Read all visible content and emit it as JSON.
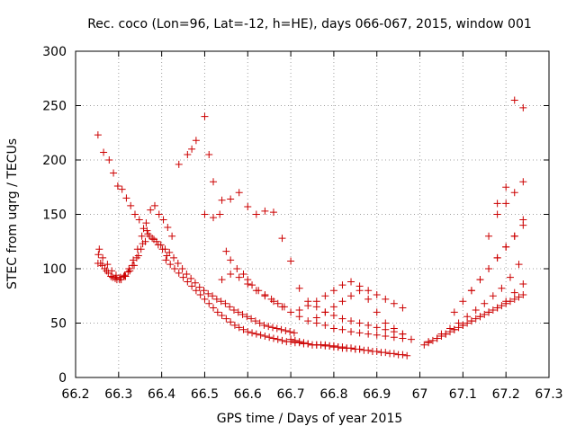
{
  "chart_data": {
    "type": "scatter",
    "title": "Rec. coco (Lon=96, Lat=-12, h=HE), days 066-067, 2015, window 001",
    "xlabel": "GPS time / Days of year 2015",
    "ylabel": "STEC from uqrg / TECUs",
    "xlim": [
      66.2,
      67.3
    ],
    "ylim": [
      0,
      300
    ],
    "xticks": [
      "66.2",
      "66.3",
      "66.4",
      "66.5",
      "66.6",
      "66.7",
      "66.8",
      "66.9",
      "67",
      "67.1",
      "67.2",
      "67.3"
    ],
    "yticks": [
      "0",
      "50",
      "100",
      "150",
      "200",
      "250",
      "300"
    ],
    "grid": true,
    "legend": "none",
    "marker": "+",
    "color": "#cc0000",
    "x": [
      66.252,
      66.262,
      66.272,
      66.282,
      66.292,
      66.302,
      66.312,
      66.322,
      66.332,
      66.342,
      66.352,
      66.362,
      66.372,
      66.382,
      66.392,
      66.402,
      66.412,
      66.253,
      66.258,
      66.268,
      66.276,
      66.286,
      66.296,
      66.306,
      66.316,
      66.326,
      66.336,
      66.346,
      66.356,
      66.366,
      66.255,
      66.263,
      66.274,
      66.284,
      66.294,
      66.304,
      66.314,
      66.324,
      66.334,
      66.344,
      66.354,
      66.364,
      66.374,
      66.384,
      66.394,
      66.404,
      66.414,
      66.424,
      66.252,
      66.265,
      66.278,
      66.288,
      66.298,
      66.308,
      66.318,
      66.328,
      66.338,
      66.348,
      66.358,
      66.368,
      66.378,
      66.388,
      66.398,
      66.408,
      66.418,
      66.428,
      66.438,
      66.448,
      66.458,
      66.468,
      66.478,
      66.488,
      66.498,
      66.508,
      66.518,
      66.528,
      66.538,
      66.548,
      66.558,
      66.568,
      66.578,
      66.588,
      66.598,
      66.608,
      66.618,
      66.628,
      66.638,
      66.648,
      66.658,
      66.668,
      66.678,
      66.688,
      66.698,
      66.708,
      66.41,
      66.42,
      66.43,
      66.44,
      66.45,
      66.46,
      66.47,
      66.48,
      66.49,
      66.5,
      66.51,
      66.52,
      66.53,
      66.54,
      66.55,
      66.56,
      66.57,
      66.58,
      66.59,
      66.6,
      66.61,
      66.62,
      66.63,
      66.64,
      66.65,
      66.66,
      66.67,
      66.68,
      66.69,
      66.7,
      66.71,
      66.72,
      66.73,
      66.74,
      66.75,
      66.76,
      66.77,
      66.78,
      66.79,
      66.8,
      66.81,
      66.82,
      66.83,
      66.84,
      66.85,
      66.86,
      66.87,
      66.88,
      66.89,
      66.9,
      66.91,
      66.92,
      66.93,
      66.94,
      66.95,
      66.96,
      66.97,
      66.44,
      66.46,
      66.47,
      66.48,
      66.5,
      66.51,
      66.52,
      66.535,
      66.55,
      66.56,
      66.575,
      66.59,
      66.6,
      66.61,
      66.625,
      66.64,
      66.655,
      66.67,
      66.685,
      66.5,
      66.52,
      66.54,
      66.56,
      66.58,
      66.6,
      66.62,
      66.64,
      66.66,
      66.68,
      66.7,
      66.72,
      66.74,
      66.76,
      66.78,
      66.8,
      66.82,
      66.84,
      66.86,
      66.88,
      66.9,
      66.92,
      66.94,
      66.96,
      66.54,
      66.56,
      66.58,
      66.6,
      66.62,
      66.64,
      66.66,
      66.68,
      66.7,
      66.72,
      66.74,
      66.76,
      66.78,
      66.8,
      66.82,
      66.84,
      66.86,
      66.88,
      66.9,
      66.92,
      66.94,
      66.96,
      66.98,
      66.72,
      66.74,
      66.76,
      66.78,
      66.8,
      66.82,
      66.84,
      66.86,
      66.88,
      66.9,
      66.92,
      66.94,
      66.96,
      66.76,
      66.78,
      66.8,
      66.82,
      66.84,
      66.86,
      66.88,
      66.9,
      66.92,
      66.94,
      66.96,
      66.7,
      66.71,
      66.72,
      66.73,
      66.74,
      66.75,
      66.76,
      66.77,
      66.78,
      66.79,
      66.8,
      66.81,
      66.82,
      66.83,
      66.84,
      66.85,
      66.86,
      67.01,
      67.02,
      67.03,
      67.04,
      67.05,
      67.06,
      67.07,
      67.08,
      67.09,
      67.1,
      67.11,
      67.12,
      67.13,
      67.14,
      67.15,
      67.16,
      67.17,
      67.18,
      67.19,
      67.2,
      67.21,
      67.22,
      67.23,
      67.24,
      67.02,
      67.04,
      67.06,
      67.08,
      67.1,
      67.12,
      67.14,
      67.16,
      67.18,
      67.2,
      67.22,
      67.24,
      67.05,
      67.07,
      67.09,
      67.11,
      67.13,
      67.15,
      67.17,
      67.19,
      67.21,
      67.23,
      67.08,
      67.1,
      67.12,
      67.14,
      67.16,
      67.18,
      67.2,
      67.22,
      67.24,
      67.12,
      67.14,
      67.16,
      67.18,
      67.2,
      67.22,
      67.24,
      67.16,
      67.18,
      67.2,
      67.22,
      67.24,
      67.18,
      67.2,
      67.22,
      67.24
    ],
    "y": [
      105,
      103,
      98,
      93,
      91,
      90,
      93,
      97,
      103,
      110,
      118,
      125,
      130,
      127,
      122,
      118,
      112,
      113,
      105,
      100,
      96,
      92,
      90,
      90,
      93,
      98,
      103,
      112,
      123,
      135,
      118,
      110,
      104,
      98,
      94,
      92,
      94,
      100,
      108,
      118,
      130,
      142,
      154,
      158,
      150,
      145,
      138,
      130,
      223,
      207,
      200,
      188,
      176,
      173,
      165,
      158,
      150,
      145,
      137,
      132,
      128,
      125,
      122,
      118,
      115,
      110,
      105,
      100,
      95,
      91,
      87,
      83,
      80,
      77,
      75,
      72,
      70,
      68,
      65,
      62,
      60,
      58,
      56,
      54,
      52,
      50,
      48,
      47,
      46,
      45,
      44,
      43,
      42,
      41,
      108,
      104,
      100,
      96,
      92,
      88,
      84,
      80,
      76,
      72,
      68,
      64,
      60,
      57,
      54,
      51,
      48,
      46,
      44,
      42,
      41,
      40,
      39,
      38,
      37,
      36,
      35,
      34,
      33,
      33,
      32,
      32,
      31,
      31,
      30,
      30,
      30,
      30,
      29,
      29,
      28,
      28,
      27,
      27,
      26,
      26,
      25,
      25,
      24,
      24,
      23,
      23,
      22,
      22,
      21,
      21,
      20,
      196,
      205,
      210,
      218,
      240,
      205,
      180,
      150,
      116,
      108,
      100,
      95,
      90,
      85,
      80,
      76,
      72,
      68,
      65,
      150,
      147,
      163,
      164,
      170,
      157,
      150,
      153,
      152,
      128,
      107,
      82,
      70,
      65,
      60,
      57,
      54,
      52,
      50,
      48,
      46,
      44,
      42,
      40,
      90,
      95,
      92,
      86,
      80,
      75,
      70,
      65,
      60,
      56,
      52,
      50,
      48,
      45,
      44,
      42,
      41,
      40,
      39,
      38,
      37,
      36,
      35,
      62,
      66,
      70,
      75,
      80,
      85,
      88,
      84,
      80,
      76,
      72,
      68,
      64,
      55,
      60,
      65,
      70,
      75,
      80,
      72,
      60,
      50,
      45,
      40,
      35,
      34,
      33,
      32,
      31,
      30,
      30,
      30,
      29,
      29,
      28,
      28,
      27,
      27,
      27,
      26,
      26,
      30,
      32,
      34,
      36,
      38,
      40,
      42,
      44,
      46,
      48,
      50,
      52,
      54,
      56,
      58,
      60,
      62,
      64,
      66,
      68,
      70,
      72,
      74,
      76,
      33,
      36,
      40,
      44,
      48,
      52,
      56,
      60,
      64,
      70,
      78,
      86,
      40,
      45,
      50,
      56,
      62,
      68,
      75,
      82,
      92,
      104,
      60,
      70,
      80,
      90,
      100,
      110,
      120,
      130,
      140,
      80,
      90,
      100,
      110,
      120,
      130,
      145,
      130,
      150,
      160,
      170,
      180,
      160,
      175,
      255,
      248
    ]
  },
  "colors": {
    "marker": "#cc0000",
    "grid": "#a0a0a0",
    "axis": "#000000"
  }
}
